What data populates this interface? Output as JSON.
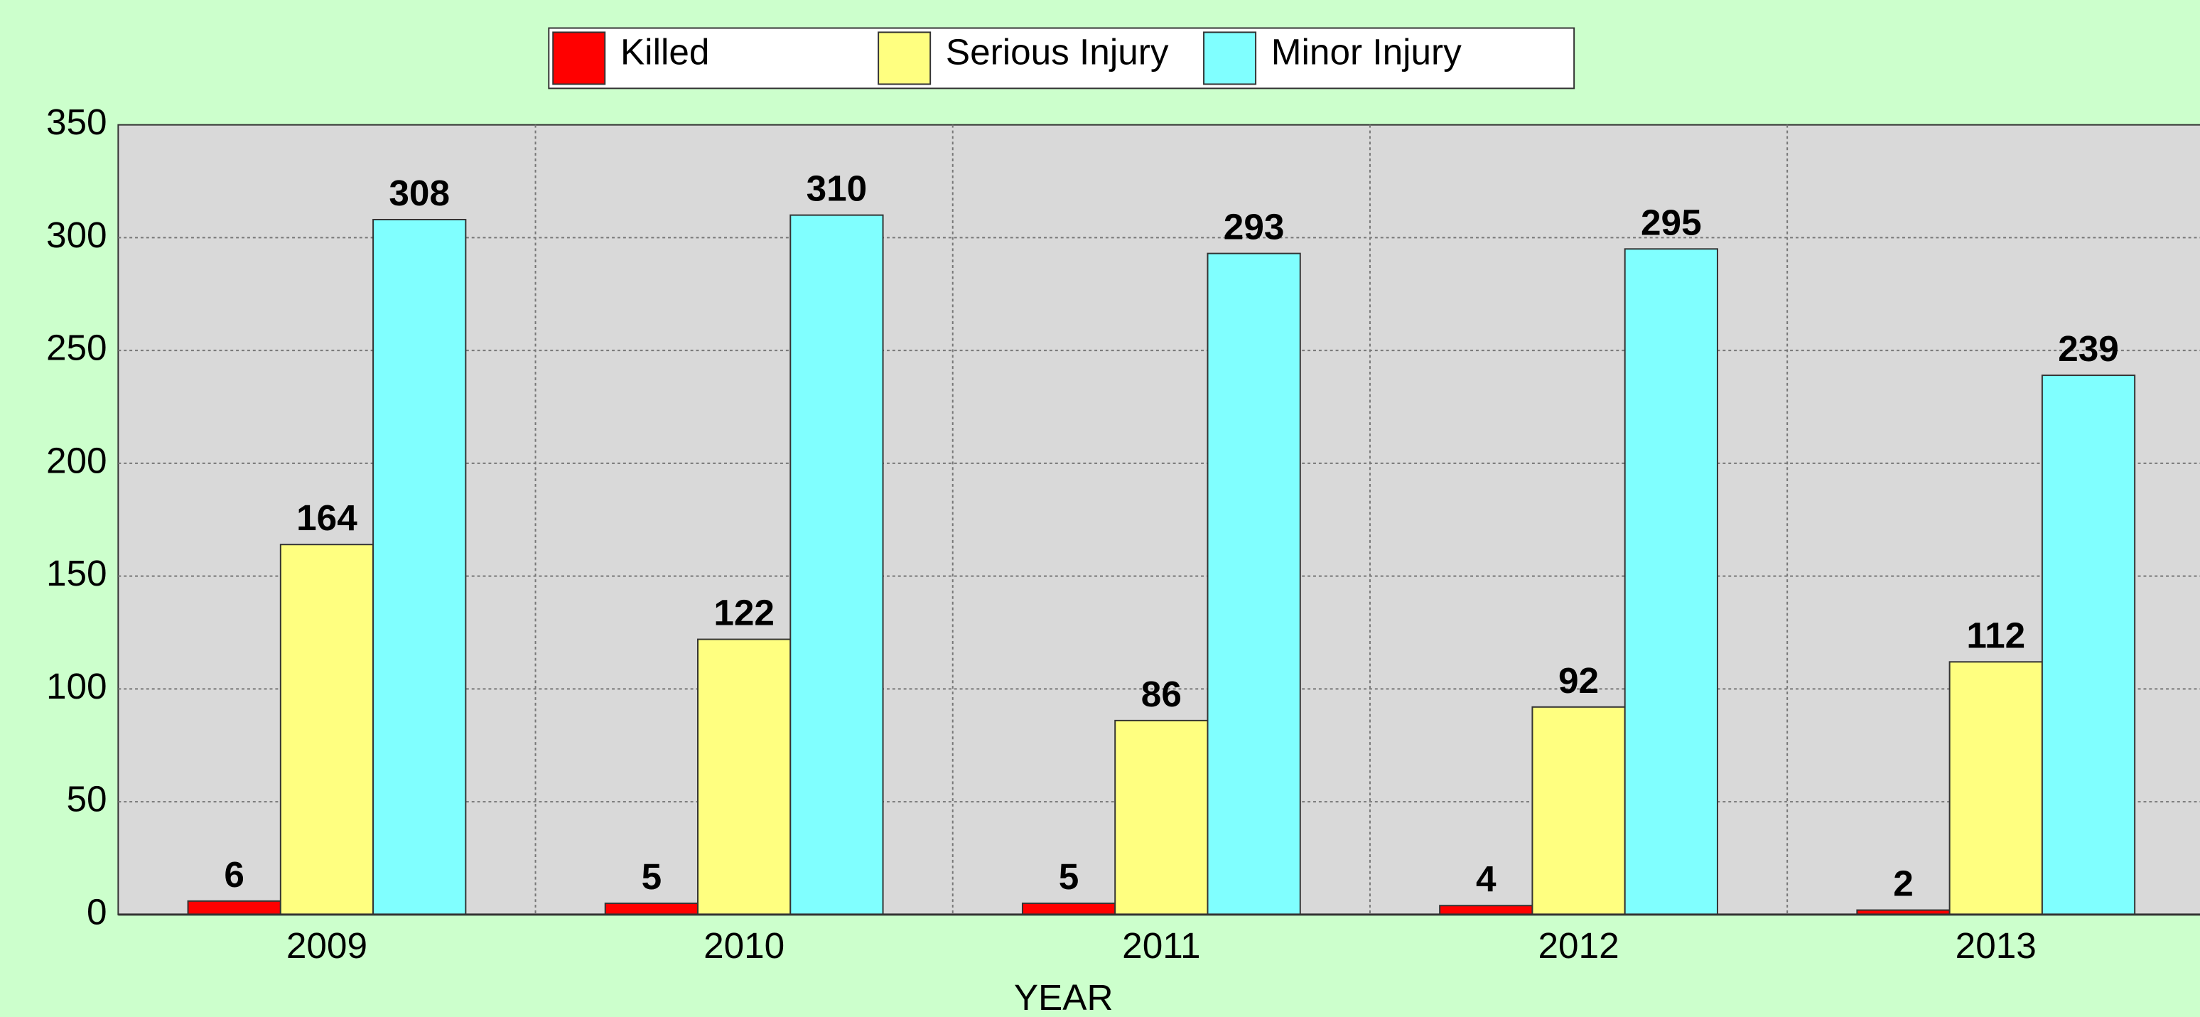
{
  "chart_data": {
    "type": "bar",
    "x_label": "YEAR",
    "categories": [
      "2009",
      "2010",
      "2011",
      "2012",
      "2013"
    ],
    "series": [
      {
        "name": "Killed",
        "color": "#ff0000",
        "values": [
          6,
          5,
          5,
          4,
          2
        ]
      },
      {
        "name": "Serious Injury",
        "color": "#ffff80",
        "values": [
          164,
          122,
          86,
          92,
          112
        ]
      },
      {
        "name": "Minor Injury",
        "color": "#80ffff",
        "values": [
          308,
          310,
          293,
          295,
          239
        ]
      }
    ],
    "ylim": [
      0,
      350
    ],
    "yticks": [
      0,
      50,
      100,
      150,
      200,
      250,
      300,
      350
    ],
    "grid": true,
    "legend": "top"
  }
}
